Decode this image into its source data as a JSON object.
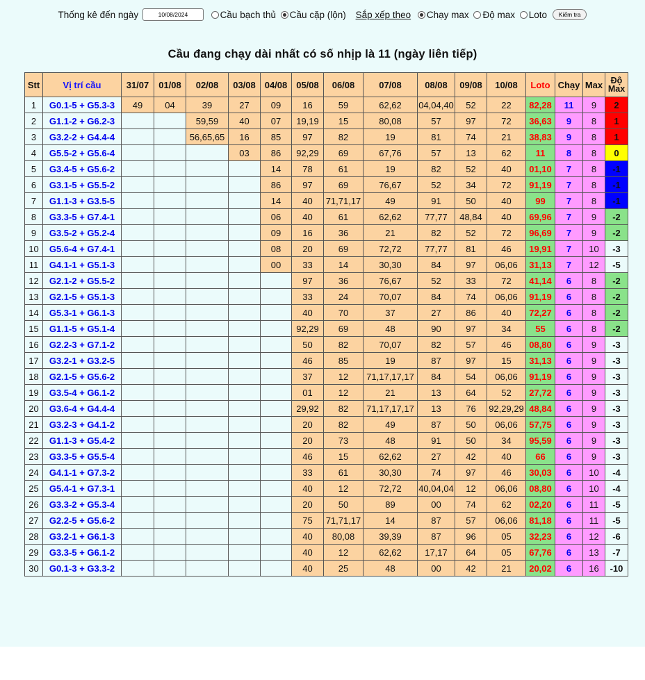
{
  "toolbar": {
    "stats_label": "Thống kê đến ngày",
    "date_value": "10/08/2024",
    "opt_bach_thu": "Cầu bạch thủ",
    "opt_cap": "Cầu cặp (lộn)",
    "sort_label": "Sắp xếp theo",
    "opt_chay_max": "Chạy max",
    "opt_do_max": "Độ max",
    "opt_loto": "Loto",
    "check_button": "Kiểm tra"
  },
  "heading": "Cầu đang chạy dài nhất có số nhịp là 11 (ngày liên tiếp)",
  "headers": {
    "stt": "Stt",
    "position": "Vị trí cầu",
    "dates": [
      "31/07",
      "01/08",
      "02/08",
      "03/08",
      "04/08",
      "05/08",
      "06/08",
      "07/08",
      "08/08",
      "09/08",
      "10/08"
    ],
    "loto": "Loto",
    "run": "Chạy",
    "max": "Max",
    "do_max_1": "Độ",
    "do_max_2": "Max"
  },
  "colors": {
    "filled_cell": "#fcd3a1",
    "loto_bg": "#8ae28a",
    "run_bg": "#ff9bff",
    "do_red": "#ff0000",
    "do_yellow": "#ffff00",
    "do_blue": "#0000ff",
    "do_green": "#8ae28a",
    "page_bg": "#ebfbfb"
  },
  "rows": [
    {
      "stt": "1",
      "pos": "G0.1-5 + G5.3-3",
      "days": [
        "49",
        "04",
        "39",
        "27",
        "09",
        "16",
        "59",
        "62,62",
        "04,04,40",
        "52",
        "22"
      ],
      "loto": "82,28",
      "run": "11",
      "max": "9",
      "do": "2",
      "do_color": "red"
    },
    {
      "stt": "2",
      "pos": "G1.1-2 + G6.2-3",
      "days": [
        "",
        "",
        "59,59",
        "40",
        "07",
        "19,19",
        "15",
        "80,08",
        "57",
        "97",
        "72"
      ],
      "loto": "36,63",
      "run": "9",
      "max": "8",
      "do": "1",
      "do_color": "red"
    },
    {
      "stt": "3",
      "pos": "G3.2-2 + G4.4-4",
      "days": [
        "",
        "",
        "56,65,65",
        "16",
        "85",
        "97",
        "82",
        "19",
        "81",
        "74",
        "21"
      ],
      "loto": "38,83",
      "run": "9",
      "max": "8",
      "do": "1",
      "do_color": "red"
    },
    {
      "stt": "4",
      "pos": "G5.5-2 + G5.6-4",
      "days": [
        "",
        "",
        "",
        "03",
        "86",
        "92,29",
        "69",
        "67,76",
        "57",
        "13",
        "62"
      ],
      "loto": "11",
      "run": "8",
      "max": "8",
      "do": "0",
      "do_color": "yellow"
    },
    {
      "stt": "5",
      "pos": "G3.4-5 + G5.6-2",
      "days": [
        "",
        "",
        "",
        "",
        "14",
        "78",
        "61",
        "19",
        "82",
        "52",
        "40"
      ],
      "loto": "01,10",
      "run": "7",
      "max": "8",
      "do": "-1",
      "do_color": "blue"
    },
    {
      "stt": "6",
      "pos": "G3.1-5 + G5.5-2",
      "days": [
        "",
        "",
        "",
        "",
        "86",
        "97",
        "69",
        "76,67",
        "52",
        "34",
        "72"
      ],
      "loto": "91,19",
      "run": "7",
      "max": "8",
      "do": "-1",
      "do_color": "blue"
    },
    {
      "stt": "7",
      "pos": "G1.1-3 + G3.5-5",
      "days": [
        "",
        "",
        "",
        "",
        "14",
        "40",
        "71,71,17",
        "49",
        "91",
        "50",
        "40"
      ],
      "loto": "99",
      "run": "7",
      "max": "8",
      "do": "-1",
      "do_color": "blue"
    },
    {
      "stt": "8",
      "pos": "G3.3-5 + G7.4-1",
      "days": [
        "",
        "",
        "",
        "",
        "06",
        "40",
        "61",
        "62,62",
        "77,77",
        "48,84",
        "40"
      ],
      "loto": "69,96",
      "run": "7",
      "max": "9",
      "do": "-2",
      "do_color": "green"
    },
    {
      "stt": "9",
      "pos": "G3.5-2 + G5.2-4",
      "days": [
        "",
        "",
        "",
        "",
        "09",
        "16",
        "36",
        "21",
        "82",
        "52",
        "72"
      ],
      "loto": "96,69",
      "run": "7",
      "max": "9",
      "do": "-2",
      "do_color": "green"
    },
    {
      "stt": "10",
      "pos": "G5.6-4 + G7.4-1",
      "days": [
        "",
        "",
        "",
        "",
        "08",
        "20",
        "69",
        "72,72",
        "77,77",
        "81",
        "46"
      ],
      "loto": "19,91",
      "run": "7",
      "max": "10",
      "do": "-3",
      "do_color": "none"
    },
    {
      "stt": "11",
      "pos": "G4.1-1 + G5.1-3",
      "days": [
        "",
        "",
        "",
        "",
        "00",
        "33",
        "14",
        "30,30",
        "84",
        "97",
        "06,06"
      ],
      "loto": "31,13",
      "run": "7",
      "max": "12",
      "do": "-5",
      "do_color": "none"
    },
    {
      "stt": "12",
      "pos": "G2.1-2 + G5.5-2",
      "days": [
        "",
        "",
        "",
        "",
        "",
        "97",
        "36",
        "76,67",
        "52",
        "33",
        "72"
      ],
      "loto": "41,14",
      "run": "6",
      "max": "8",
      "do": "-2",
      "do_color": "green"
    },
    {
      "stt": "13",
      "pos": "G2.1-5 + G5.1-3",
      "days": [
        "",
        "",
        "",
        "",
        "",
        "33",
        "24",
        "70,07",
        "84",
        "74",
        "06,06"
      ],
      "loto": "91,19",
      "run": "6",
      "max": "8",
      "do": "-2",
      "do_color": "green"
    },
    {
      "stt": "14",
      "pos": "G5.3-1 + G6.1-3",
      "days": [
        "",
        "",
        "",
        "",
        "",
        "40",
        "70",
        "37",
        "27",
        "86",
        "40"
      ],
      "loto": "72,27",
      "run": "6",
      "max": "8",
      "do": "-2",
      "do_color": "green"
    },
    {
      "stt": "15",
      "pos": "G1.1-5 + G5.1-4",
      "days": [
        "",
        "",
        "",
        "",
        "",
        "92,29",
        "69",
        "48",
        "90",
        "97",
        "34"
      ],
      "loto": "55",
      "run": "6",
      "max": "8",
      "do": "-2",
      "do_color": "green"
    },
    {
      "stt": "16",
      "pos": "G2.2-3 + G7.1-2",
      "days": [
        "",
        "",
        "",
        "",
        "",
        "50",
        "82",
        "70,07",
        "82",
        "57",
        "46"
      ],
      "loto": "08,80",
      "run": "6",
      "max": "9",
      "do": "-3",
      "do_color": "none"
    },
    {
      "stt": "17",
      "pos": "G3.2-1 + G3.2-5",
      "days": [
        "",
        "",
        "",
        "",
        "",
        "46",
        "85",
        "19",
        "87",
        "97",
        "15"
      ],
      "loto": "31,13",
      "run": "6",
      "max": "9",
      "do": "-3",
      "do_color": "none"
    },
    {
      "stt": "18",
      "pos": "G2.1-5 + G5.6-2",
      "days": [
        "",
        "",
        "",
        "",
        "",
        "37",
        "12",
        "71,17,17,17",
        "84",
        "54",
        "06,06"
      ],
      "loto": "91,19",
      "run": "6",
      "max": "9",
      "do": "-3",
      "do_color": "none"
    },
    {
      "stt": "19",
      "pos": "G3.5-4 + G6.1-2",
      "days": [
        "",
        "",
        "",
        "",
        "",
        "01",
        "12",
        "21",
        "13",
        "64",
        "52"
      ],
      "loto": "27,72",
      "run": "6",
      "max": "9",
      "do": "-3",
      "do_color": "none"
    },
    {
      "stt": "20",
      "pos": "G3.6-4 + G4.4-4",
      "days": [
        "",
        "",
        "",
        "",
        "",
        "29,92",
        "82",
        "71,17,17,17",
        "13",
        "76",
        "92,29,29"
      ],
      "loto": "48,84",
      "run": "6",
      "max": "9",
      "do": "-3",
      "do_color": "none"
    },
    {
      "stt": "21",
      "pos": "G3.2-3 + G4.1-2",
      "days": [
        "",
        "",
        "",
        "",
        "",
        "20",
        "82",
        "49",
        "87",
        "50",
        "06,06"
      ],
      "loto": "57,75",
      "run": "6",
      "max": "9",
      "do": "-3",
      "do_color": "none"
    },
    {
      "stt": "22",
      "pos": "G1.1-3 + G5.4-2",
      "days": [
        "",
        "",
        "",
        "",
        "",
        "20",
        "73",
        "48",
        "91",
        "50",
        "34"
      ],
      "loto": "95,59",
      "run": "6",
      "max": "9",
      "do": "-3",
      "do_color": "none"
    },
    {
      "stt": "23",
      "pos": "G3.3-5 + G5.5-4",
      "days": [
        "",
        "",
        "",
        "",
        "",
        "46",
        "15",
        "62,62",
        "27",
        "42",
        "40"
      ],
      "loto": "66",
      "run": "6",
      "max": "9",
      "do": "-3",
      "do_color": "none"
    },
    {
      "stt": "24",
      "pos": "G4.1-1 + G7.3-2",
      "days": [
        "",
        "",
        "",
        "",
        "",
        "33",
        "61",
        "30,30",
        "74",
        "97",
        "46"
      ],
      "loto": "30,03",
      "run": "6",
      "max": "10",
      "do": "-4",
      "do_color": "none"
    },
    {
      "stt": "25",
      "pos": "G5.4-1 + G7.3-1",
      "days": [
        "",
        "",
        "",
        "",
        "",
        "40",
        "12",
        "72,72",
        "40,04,04",
        "12",
        "06,06"
      ],
      "loto": "08,80",
      "run": "6",
      "max": "10",
      "do": "-4",
      "do_color": "none"
    },
    {
      "stt": "26",
      "pos": "G3.3-2 + G5.3-4",
      "days": [
        "",
        "",
        "",
        "",
        "",
        "20",
        "50",
        "89",
        "00",
        "74",
        "62"
      ],
      "loto": "02,20",
      "run": "6",
      "max": "11",
      "do": "-5",
      "do_color": "none"
    },
    {
      "stt": "27",
      "pos": "G2.2-5 + G5.6-2",
      "days": [
        "",
        "",
        "",
        "",
        "",
        "75",
        "71,71,17",
        "14",
        "87",
        "57",
        "06,06"
      ],
      "loto": "81,18",
      "run": "6",
      "max": "11",
      "do": "-5",
      "do_color": "none"
    },
    {
      "stt": "28",
      "pos": "G3.2-1 + G6.1-3",
      "days": [
        "",
        "",
        "",
        "",
        "",
        "40",
        "80,08",
        "39,39",
        "87",
        "96",
        "05"
      ],
      "loto": "32,23",
      "run": "6",
      "max": "12",
      "do": "-6",
      "do_color": "none"
    },
    {
      "stt": "29",
      "pos": "G3.3-5 + G6.1-2",
      "days": [
        "",
        "",
        "",
        "",
        "",
        "40",
        "12",
        "62,62",
        "17,17",
        "64",
        "05"
      ],
      "loto": "67,76",
      "run": "6",
      "max": "13",
      "do": "-7",
      "do_color": "none"
    },
    {
      "stt": "30",
      "pos": "G0.1-3 + G3.3-2",
      "days": [
        "",
        "",
        "",
        "",
        "",
        "40",
        "25",
        "48",
        "00",
        "42",
        "21"
      ],
      "loto": "20,02",
      "run": "6",
      "max": "16",
      "do": "-10",
      "do_color": "none"
    }
  ]
}
